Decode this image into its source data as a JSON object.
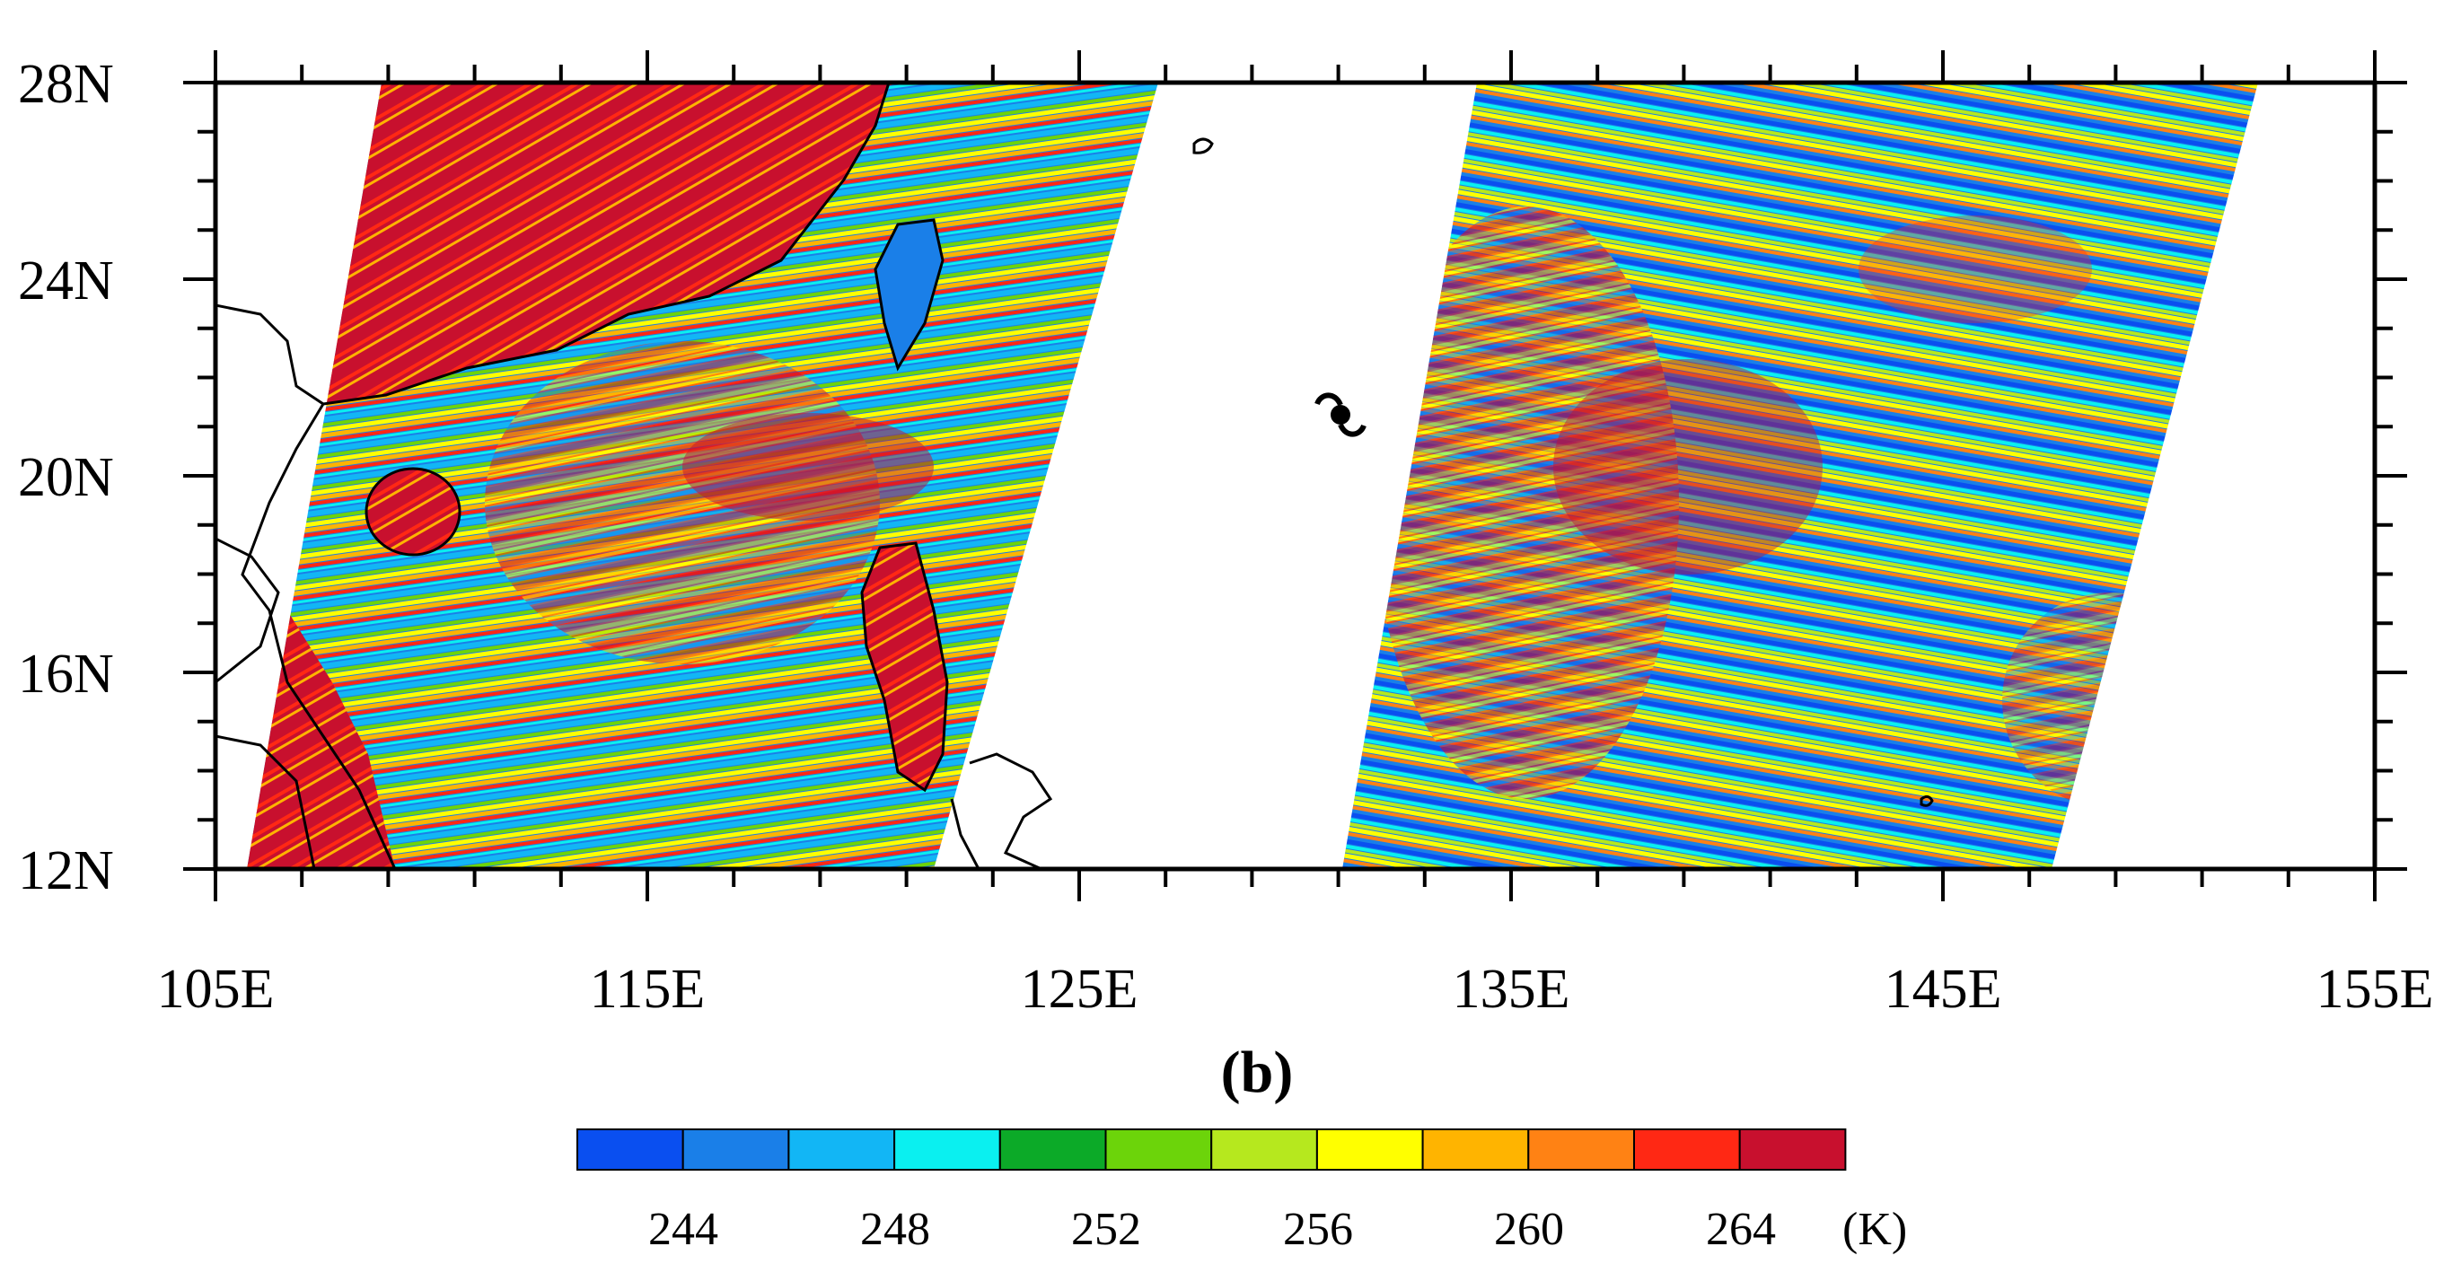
{
  "figure": {
    "panel_label": "(b)",
    "lat_ticks": [
      "28N",
      "24N",
      "20N",
      "16N",
      "12N"
    ],
    "lon_ticks": [
      "105E",
      "115E",
      "125E",
      "135E",
      "145E",
      "155E"
    ],
    "lat_range": [
      12,
      28
    ],
    "lon_range": [
      105,
      155
    ],
    "colorbar": {
      "unit": "(K)",
      "tick_labels": [
        "244",
        "248",
        "252",
        "256",
        "260",
        "264"
      ],
      "colors": [
        "#0a4ff0",
        "#1a7fe8",
        "#12b6f5",
        "#0af0f0",
        "#0caa28",
        "#6cd40a",
        "#b6e81e",
        "#ffff00",
        "#ffb400",
        "#ff8214",
        "#ff2814",
        "#c8102e"
      ]
    },
    "typhoon_symbol": "typhoon-icon"
  }
}
